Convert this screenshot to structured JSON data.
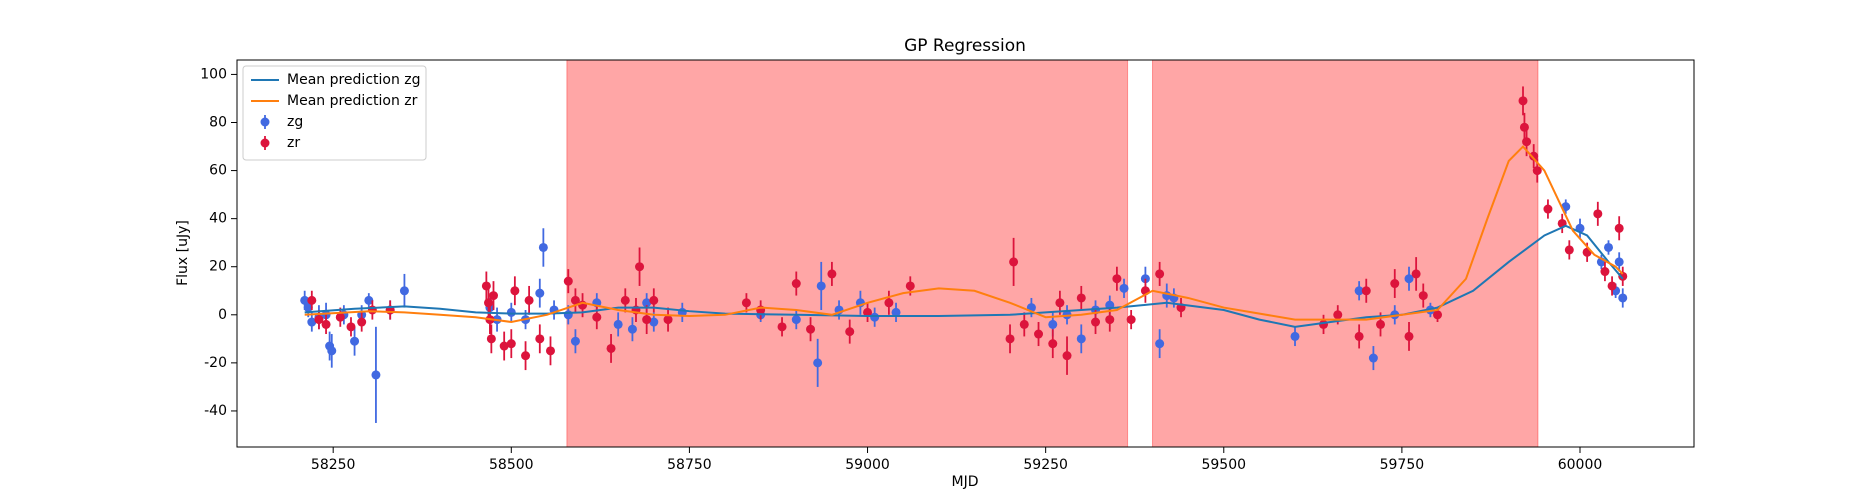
{
  "chart_data": {
    "type": "errorbar",
    "title": "GP Regression",
    "xlabel": "MJD",
    "ylabel": "Flux [uJy]",
    "xlim": [
      58115,
      60160
    ],
    "ylim": [
      -55,
      106
    ],
    "xticks": [
      58250,
      58500,
      58750,
      59000,
      59250,
      59500,
      59750,
      60000
    ],
    "yticks": [
      -40,
      -20,
      0,
      20,
      40,
      60,
      80,
      100
    ],
    "grid": false,
    "legend": "upper left",
    "shaded_regions": {
      "color": "#ff0000",
      "x": [
        [
          58578,
          59365
        ],
        [
          59400,
          59941
        ]
      ]
    },
    "lines": [
      {
        "name": "Mean prediction zg",
        "color": "#1f77b4",
        "x": [
          58210,
          58280,
          58350,
          58400,
          58450,
          58500,
          58550,
          58600,
          58650,
          58700,
          58750,
          58800,
          58900,
          59000,
          59100,
          59200,
          59250,
          59300,
          59350,
          59420,
          59500,
          59550,
          59600,
          59650,
          59700,
          59750,
          59800,
          59850,
          59900,
          59950,
          59980,
          60010,
          60040,
          60060
        ],
        "values": [
          1,
          2.5,
          3.5,
          2.5,
          1,
          0.5,
          0.5,
          1,
          3,
          3,
          1.5,
          0.5,
          0,
          -0.5,
          -0.5,
          0,
          1,
          2,
          3,
          5,
          2,
          -2,
          -5,
          -3,
          -1,
          0,
          3,
          10,
          22,
          33,
          37,
          33,
          22,
          15
        ]
      },
      {
        "name": "Mean prediction zr",
        "color": "#ff7f0e",
        "x": [
          58210,
          58300,
          58350,
          58400,
          58450,
          58500,
          58550,
          58600,
          58650,
          58700,
          58750,
          58800,
          58850,
          58900,
          58950,
          59000,
          59050,
          59100,
          59150,
          59200,
          59250,
          59300,
          59350,
          59400,
          59450,
          59500,
          59600,
          59700,
          59800,
          59840,
          59870,
          59900,
          59920,
          59950,
          59990,
          60020,
          60050,
          60060
        ],
        "values": [
          0,
          1.5,
          1,
          0,
          -1,
          -3,
          0,
          5,
          2,
          0,
          -0.5,
          0,
          3,
          2,
          0,
          5,
          9,
          11,
          10,
          5,
          -1,
          0,
          2,
          10,
          7,
          3,
          -2,
          -2,
          2,
          15,
          40,
          64,
          70,
          60,
          35,
          25,
          20,
          17
        ]
      }
    ],
    "series": [
      {
        "name": "zg",
        "color": "#4169e1",
        "x": [
          58210,
          58215,
          58220,
          58230,
          58240,
          58245,
          58248,
          58265,
          58280,
          58290,
          58300,
          58310,
          58330,
          58350,
          58470,
          58480,
          58500,
          58520,
          58540,
          58545,
          58560,
          58580,
          58590,
          58620,
          58650,
          58670,
          58690,
          58700,
          58740,
          58850,
          58900,
          58930,
          58935,
          58960,
          58990,
          59010,
          59040,
          59230,
          59260,
          59280,
          59300,
          59320,
          59340,
          59360,
          59390,
          59410,
          59420,
          59430,
          59600,
          59690,
          59710,
          59740,
          59760,
          59790,
          59980,
          60000,
          60030,
          60040,
          60050,
          60055,
          60060
        ],
        "values": [
          6,
          3,
          -3,
          -1,
          0,
          -13,
          -15,
          0,
          -11,
          0,
          6,
          -25,
          2,
          10,
          3,
          -2,
          1,
          -2,
          9,
          28,
          2,
          0,
          -11,
          5,
          -4,
          -6,
          5,
          -3,
          1,
          0,
          -2,
          -20,
          12,
          2,
          5,
          -1,
          1,
          3,
          -4,
          0,
          -10,
          2,
          4,
          11,
          15,
          -12,
          8,
          7,
          -9,
          10,
          -18,
          0,
          15,
          2,
          45,
          36,
          22,
          28,
          10,
          22,
          7
        ],
        "errors": [
          4,
          4,
          4,
          5,
          5,
          6,
          7,
          4,
          6,
          4,
          3,
          20,
          4,
          7,
          4,
          5,
          4,
          4,
          6,
          8,
          4,
          4,
          5,
          4,
          5,
          5,
          4,
          4,
          4,
          3,
          4,
          10,
          10,
          4,
          5,
          4,
          4,
          4,
          5,
          4,
          6,
          4,
          4,
          4,
          5,
          6,
          5,
          4,
          4,
          4,
          5,
          4,
          5,
          3,
          3,
          4,
          3,
          3,
          3,
          4,
          4
        ]
      },
      {
        "name": "zr",
        "color": "#dc143c",
        "x": [
          58220,
          58230,
          58240,
          58260,
          58275,
          58290,
          58305,
          58330,
          58465,
          58468,
          58470,
          58472,
          58475,
          58490,
          58500,
          58505,
          58520,
          58525,
          58540,
          58555,
          58580,
          58590,
          58600,
          58620,
          58640,
          58660,
          58675,
          58680,
          58690,
          58700,
          58720,
          58830,
          58850,
          58880,
          58900,
          58920,
          58950,
          58975,
          59000,
          59030,
          59060,
          59200,
          59205,
          59220,
          59240,
          59260,
          59270,
          59280,
          59300,
          59320,
          59340,
          59350,
          59370,
          59390,
          59410,
          59440,
          59640,
          59660,
          59690,
          59700,
          59720,
          59740,
          59760,
          59770,
          59780,
          59800,
          59920,
          59922,
          59925,
          59935,
          59940,
          59955,
          59975,
          59985,
          60010,
          60025,
          60035,
          60045,
          60055,
          60060
        ],
        "values": [
          6,
          -2,
          -4,
          -1,
          -5,
          -3,
          2,
          2,
          12,
          5,
          -2,
          -10,
          8,
          -13,
          -12,
          10,
          -17,
          6,
          -10,
          -15,
          14,
          6,
          4,
          -1,
          -14,
          6,
          2,
          20,
          -2,
          6,
          -2,
          5,
          2,
          -5,
          13,
          -6,
          17,
          -7,
          1,
          5,
          12,
          -10,
          22,
          -4,
          -8,
          -12,
          5,
          -17,
          7,
          -3,
          -2,
          15,
          -2,
          10,
          17,
          3,
          -4,
          0,
          -9,
          10,
          -4,
          13,
          -9,
          17,
          8,
          0,
          89,
          78,
          72,
          66,
          60,
          44,
          38,
          27,
          26,
          42,
          18,
          12,
          36,
          16
        ],
        "errors": [
          4,
          4,
          4,
          4,
          4,
          4,
          4,
          4,
          6,
          6,
          6,
          6,
          6,
          6,
          6,
          6,
          6,
          6,
          6,
          6,
          5,
          5,
          5,
          5,
          6,
          5,
          5,
          8,
          6,
          5,
          5,
          4,
          4,
          4,
          5,
          5,
          5,
          5,
          4,
          5,
          4,
          6,
          10,
          5,
          5,
          6,
          5,
          8,
          5,
          5,
          5,
          5,
          4,
          5,
          5,
          4,
          4,
          4,
          5,
          5,
          5,
          6,
          6,
          7,
          5,
          3,
          6,
          6,
          6,
          5,
          5,
          4,
          4,
          4,
          4,
          5,
          4,
          4,
          5,
          4
        ]
      }
    ]
  }
}
